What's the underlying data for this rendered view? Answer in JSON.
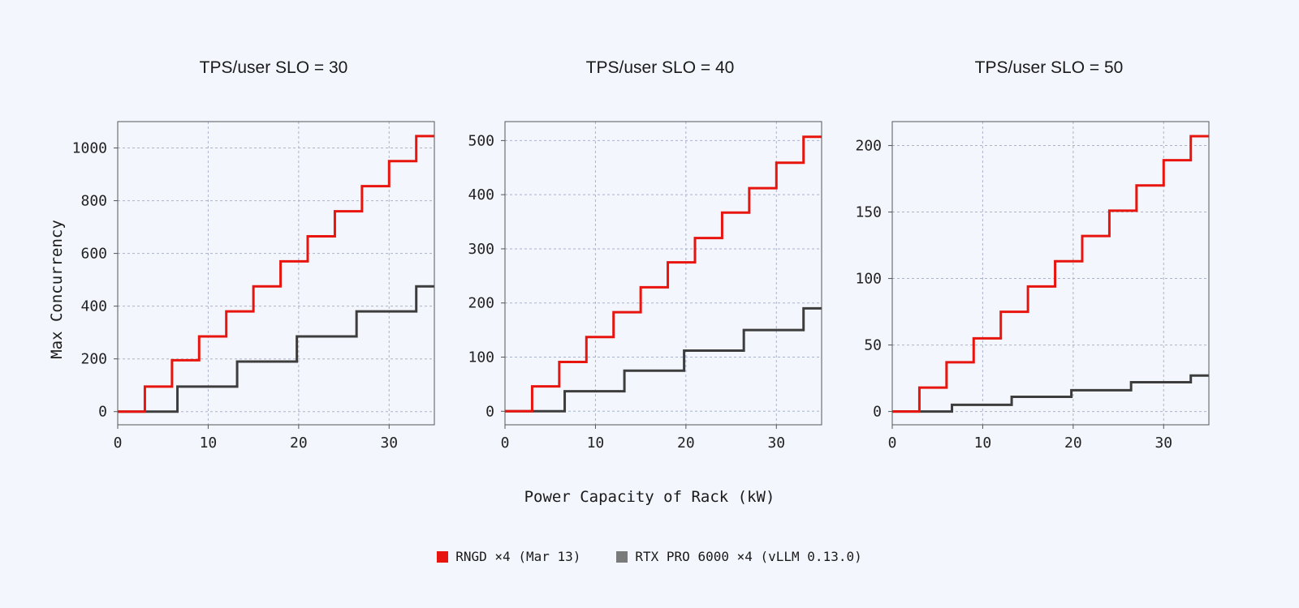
{
  "colors": {
    "rngd": "#e8140e",
    "rtx": "#3d3d3d",
    "grid": "#aab3cc",
    "background": "#f3f6fd"
  },
  "chart_data": [
    {
      "type": "line",
      "title": "TPS/user SLO = 30",
      "xlabel": "Power Capacity of Rack (kW)",
      "ylabel": "Max Concurrency",
      "xlim": [
        0,
        35
      ],
      "ylim": [
        -50,
        1100
      ],
      "xticks": [
        0,
        10,
        20,
        30
      ],
      "yticks": [
        0,
        200,
        400,
        600,
        800,
        1000
      ],
      "grid": true,
      "series": [
        {
          "name": "RNGD ×4 (Mar 13)",
          "color": "#e8140e",
          "step": true,
          "x": [
            0,
            3,
            6,
            9,
            12,
            15,
            18,
            21,
            24,
            27,
            30,
            33,
            35
          ],
          "y": [
            0,
            95,
            195,
            285,
            380,
            475,
            570,
            665,
            760,
            855,
            950,
            1045,
            1045
          ]
        },
        {
          "name": "RTX PRO 6000 ×4 (vLLM 0.13.0)",
          "color": "#3d3d3d",
          "step": true,
          "x": [
            0,
            6.6,
            13.2,
            19.8,
            26.4,
            33,
            35
          ],
          "y": [
            0,
            95,
            190,
            285,
            380,
            475,
            475
          ]
        }
      ]
    },
    {
      "type": "line",
      "title": "TPS/user SLO = 40",
      "xlabel": "Power Capacity of Rack (kW)",
      "ylabel": "Max Concurrency",
      "xlim": [
        0,
        35
      ],
      "ylim": [
        -25,
        535
      ],
      "xticks": [
        0,
        10,
        20,
        30
      ],
      "yticks": [
        0,
        100,
        200,
        300,
        400,
        500
      ],
      "grid": true,
      "series": [
        {
          "name": "RNGD ×4 (Mar 13)",
          "color": "#e8140e",
          "step": true,
          "x": [
            0,
            3,
            6,
            9,
            12,
            15,
            18,
            21,
            24,
            27,
            30,
            33,
            35
          ],
          "y": [
            0,
            46,
            91,
            137,
            183,
            229,
            275,
            320,
            367,
            412,
            459,
            507,
            507
          ]
        },
        {
          "name": "RTX PRO 6000 ×4 (vLLM 0.13.0)",
          "color": "#3d3d3d",
          "step": true,
          "x": [
            0,
            6.6,
            13.2,
            19.8,
            26.4,
            33,
            35
          ],
          "y": [
            0,
            37,
            75,
            112,
            150,
            190,
            190
          ]
        }
      ]
    },
    {
      "type": "line",
      "title": "TPS/user SLO = 50",
      "xlabel": "Power Capacity of Rack (kW)",
      "ylabel": "Max Concurrency",
      "xlim": [
        0,
        35
      ],
      "ylim": [
        -10,
        218
      ],
      "xticks": [
        0,
        10,
        20,
        30
      ],
      "yticks": [
        0,
        50,
        100,
        150,
        200
      ],
      "grid": true,
      "series": [
        {
          "name": "RNGD ×4 (Mar 13)",
          "color": "#e8140e",
          "step": true,
          "x": [
            0,
            3,
            6,
            9,
            12,
            15,
            18,
            21,
            24,
            27,
            30,
            33,
            35
          ],
          "y": [
            0,
            18,
            37,
            55,
            75,
            94,
            113,
            132,
            151,
            170,
            189,
            207,
            207
          ]
        },
        {
          "name": "RTX PRO 6000 ×4 (vLLM 0.13.0)",
          "color": "#3d3d3d",
          "step": true,
          "x": [
            0,
            6.6,
            13.2,
            19.8,
            26.4,
            33,
            35
          ],
          "y": [
            0,
            5,
            11,
            16,
            22,
            27,
            27
          ]
        }
      ]
    }
  ],
  "legend": [
    {
      "label": "RNGD ×4 (Mar 13)",
      "color": "#e8140e"
    },
    {
      "label": "RTX PRO 6000 ×4 (vLLM 0.13.0)",
      "color": "#7a7a7a"
    }
  ],
  "axis_labels": {
    "x": "Power Capacity of Rack (kW)",
    "y": "Max Concurrency"
  }
}
